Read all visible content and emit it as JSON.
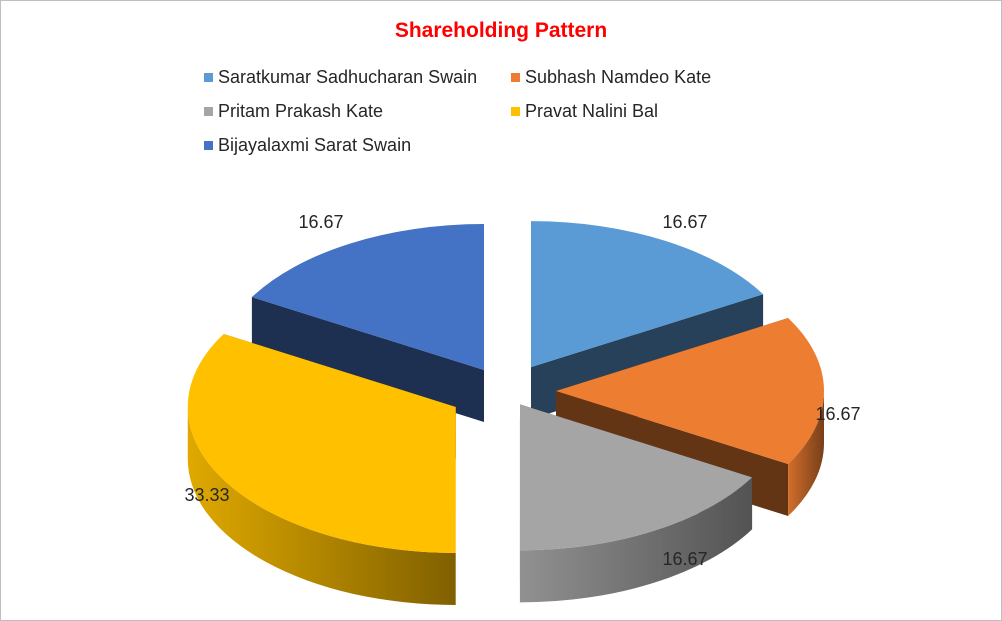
{
  "chart_data": {
    "type": "pie",
    "title": "Shareholding Pattern",
    "style": "3d-exploded",
    "legend_position": "top",
    "slices": [
      {
        "name": "Saratkumar Sadhucharan Swain",
        "value": 16.67,
        "label": "16.67",
        "color": "#5b9bd5"
      },
      {
        "name": "Subhash Namdeo Kate",
        "value": 16.67,
        "label": "16.67",
        "color": "#ed7d31"
      },
      {
        "name": "Pritam Prakash Kate",
        "value": 16.67,
        "label": "16.67",
        "color": "#a5a5a5"
      },
      {
        "name": "Pravat Nalini Bal",
        "value": 33.33,
        "label": "33.33",
        "color": "#ffc000"
      },
      {
        "name": "Bijayalaxmi Sarat Swain",
        "value": 16.67,
        "label": "16.67",
        "color": "#4472c4"
      }
    ]
  }
}
